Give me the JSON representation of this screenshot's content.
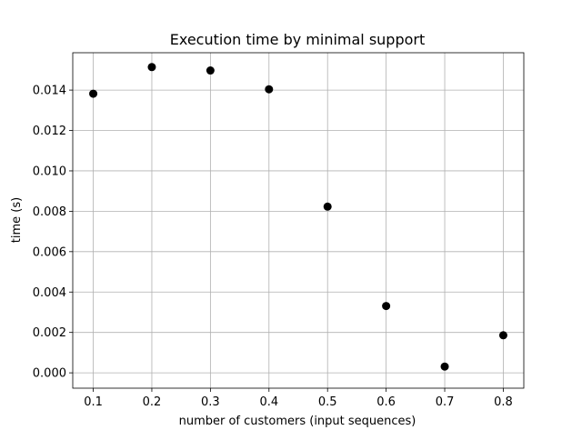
{
  "chart_data": {
    "type": "scatter",
    "title": "Execution time by minimal support",
    "xlabel": "number of customers (input sequences)",
    "ylabel": "time (s)",
    "xlim": [
      0.065,
      0.835
    ],
    "ylim": [
      -0.00076,
      0.01585
    ],
    "x_ticks": [
      0.1,
      0.2,
      0.3,
      0.4,
      0.5,
      0.6,
      0.7,
      0.8
    ],
    "x_tick_labels": [
      "0.1",
      "0.2",
      "0.3",
      "0.4",
      "0.5",
      "0.6",
      "0.7",
      "0.8"
    ],
    "y_ticks": [
      0.0,
      0.002,
      0.004,
      0.006,
      0.008,
      0.01,
      0.012,
      0.014
    ],
    "y_tick_labels": [
      "0.000",
      "0.002",
      "0.004",
      "0.006",
      "0.008",
      "0.010",
      "0.012",
      "0.014"
    ],
    "grid": true,
    "marker_color": "#000000",
    "grid_color": "#b0b0b0",
    "x": [
      0.1,
      0.2,
      0.3,
      0.4,
      0.5,
      0.6,
      0.7,
      0.8
    ],
    "y": [
      0.01382,
      0.01514,
      0.01497,
      0.01404,
      0.00823,
      0.00331,
      0.00031,
      0.00186
    ]
  }
}
